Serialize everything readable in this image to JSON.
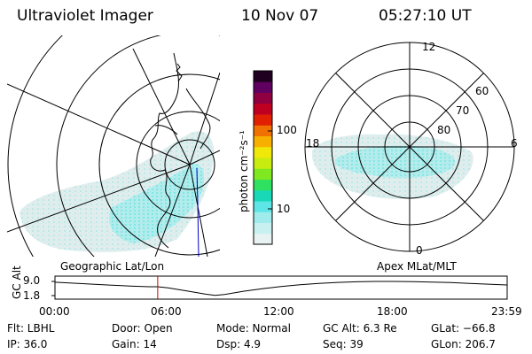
{
  "header": {
    "instrument": "Ultraviolet Imager",
    "date": "10 Nov 07",
    "time": "05:27:10 UT"
  },
  "left_map": {
    "caption": "Geographic Lat/Lon"
  },
  "right_map": {
    "caption": "Apex  MLat/MLT",
    "mlt_labels": {
      "top": "12",
      "left": "18",
      "right": "6",
      "bottom": "0"
    },
    "lat_labels": [
      "60",
      "70",
      "80"
    ]
  },
  "colorbar": {
    "label": "photon cm⁻²s⁻¹",
    "ticks": [
      "100",
      "10"
    ],
    "colors": [
      "#e8f2f2",
      "#c8f0f0",
      "#a0ecec",
      "#5ee6e6",
      "#18d8b8",
      "#30e060",
      "#80e820",
      "#c8ec10",
      "#f0e808",
      "#f8b000",
      "#f07000",
      "#e02000",
      "#c00020",
      "#900040",
      "#600060",
      "#200020"
    ]
  },
  "chart_data": {
    "type": "line",
    "title": "",
    "ylabel": "GC Alt",
    "ytick_labels": [
      "9.0",
      "1.8"
    ],
    "ylim": [
      1.8,
      9.0
    ],
    "xlim_hours": [
      0,
      24
    ],
    "xtick_labels": [
      "00:00",
      "06:00",
      "12:00",
      "18:00",
      "23:59"
    ],
    "x_hours": [
      0,
      1,
      2,
      3,
      4,
      5,
      5.45,
      6,
      7,
      8,
      8.5,
      9,
      10,
      11,
      12,
      13,
      14,
      15,
      16,
      17,
      18,
      19,
      20,
      21,
      22,
      23,
      23.98
    ],
    "y_re": [
      8.6,
      8.1,
      7.6,
      7.1,
      6.6,
      6.3,
      6.3,
      5.7,
      4.2,
      2.5,
      1.9,
      2.4,
      4.0,
      5.3,
      6.4,
      7.3,
      8.0,
      8.5,
      8.8,
      9.0,
      9.0,
      8.9,
      8.7,
      8.4,
      8.0,
      7.6,
      7.2
    ],
    "current_time_hours": 5.453,
    "line_color": "#000000",
    "marker_color": "#cc0000"
  },
  "info": {
    "flt": "Flt: LBHL",
    "ip": "IP: 36.0",
    "door": "Door: Open",
    "gain": "Gain: 14",
    "mode": "Mode: Normal",
    "dsp": "Dsp:    4.9",
    "gcalt": "GC Alt: 6.3 Re",
    "seq": "Seq: 39",
    "glat": "GLat: −66.8",
    "glon": "GLon: 206.7"
  }
}
